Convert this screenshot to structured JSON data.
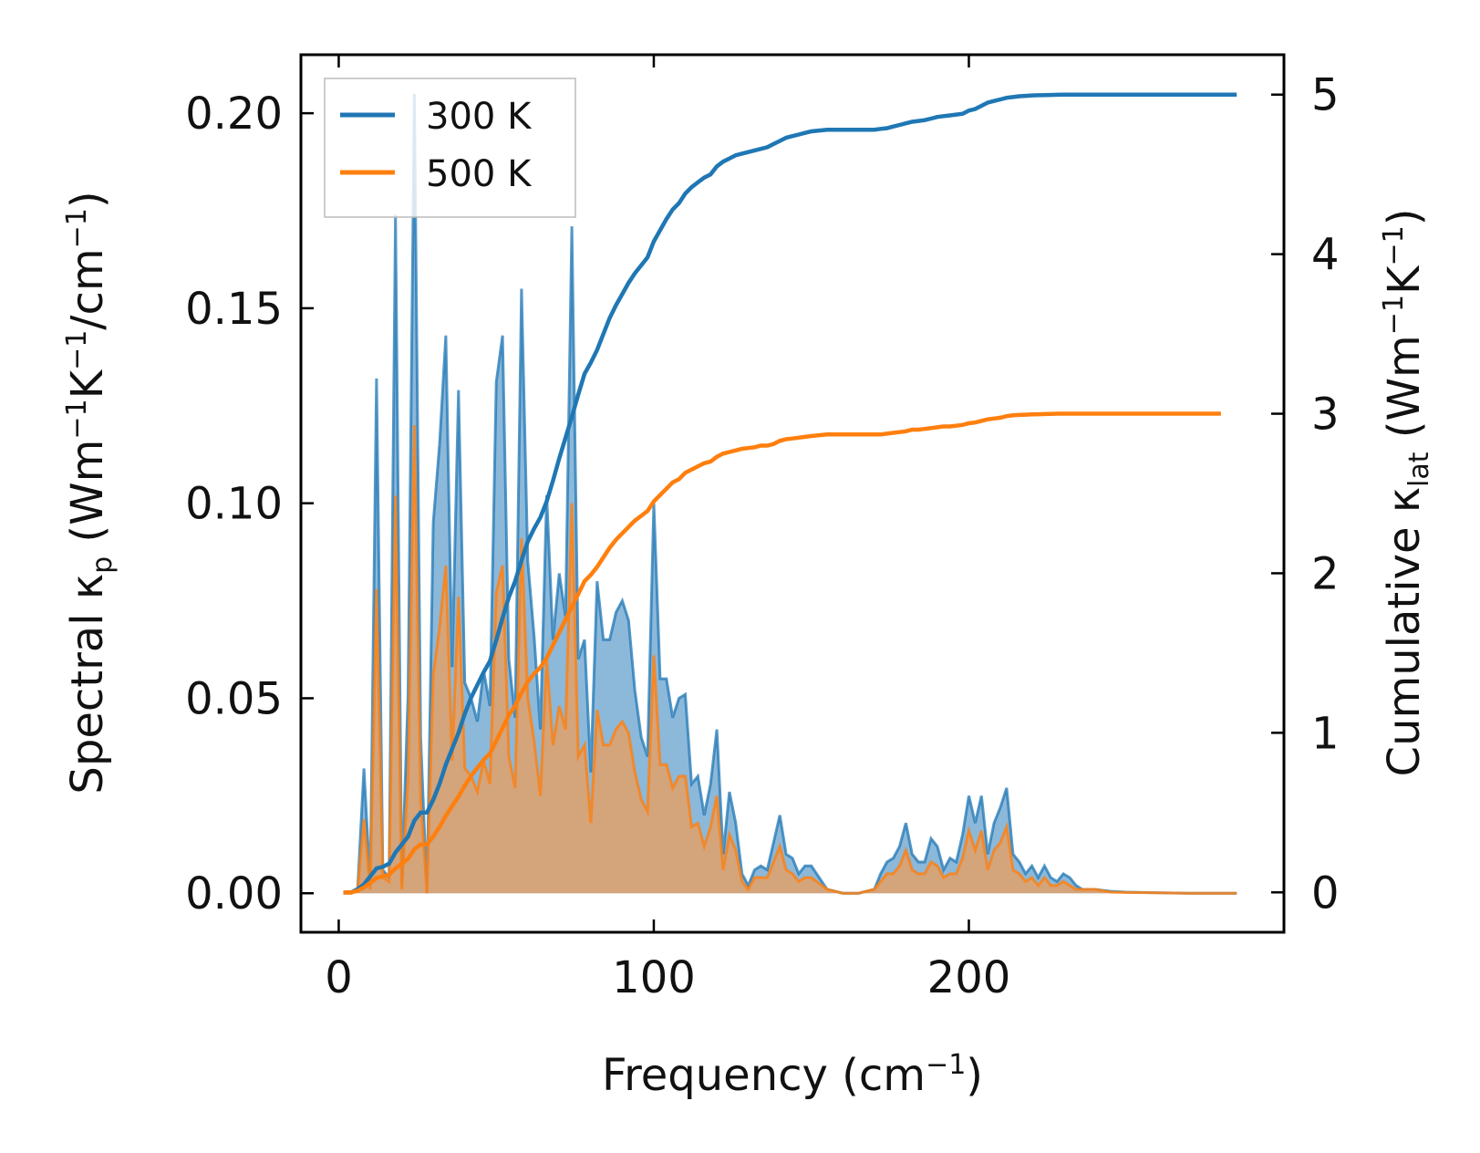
{
  "chart_data": {
    "type": "line",
    "title": "",
    "xlabel": {
      "main": "Frequency (cm",
      "sup": "−1",
      "close": ")"
    },
    "ylabel_left": {
      "p1": "Spectral κ",
      "sub": "p",
      "p2": " (Wm",
      "sup1": "−1",
      "p3": "K",
      "sup2": "−1",
      "p4": "/cm",
      "sup3": "−1",
      "p5": ")"
    },
    "ylabel_right": {
      "p1": "Cumulative κ",
      "sub": "lat",
      "p2": " (Wm",
      "sup1": "−1",
      "p3": "K",
      "sup2": "−1",
      "p4": ")"
    },
    "xlim": [
      -12,
      300
    ],
    "ylim_left": [
      -0.01,
      0.215
    ],
    "ylim_right": [
      -0.25,
      5.25
    ],
    "x_ticks": [
      0,
      100,
      200
    ],
    "x_tick_labels": [
      "0",
      "100",
      "200"
    ],
    "y_left_ticks": [
      0.0,
      0.05,
      0.1,
      0.15,
      0.2
    ],
    "y_left_tick_labels": [
      "0.00",
      "0.05",
      "0.10",
      "0.15",
      "0.20"
    ],
    "y_right_ticks": [
      0,
      1,
      2,
      3,
      4,
      5
    ],
    "y_right_tick_labels": [
      "0",
      "1",
      "2",
      "3",
      "4",
      "5"
    ],
    "legend": {
      "position": "upper-left",
      "entries": [
        "300 K",
        "500 K"
      ]
    },
    "colors": {
      "300K": "#1f77b4",
      "500K": "#ff7f0e",
      "fill300": "#7fb0d6",
      "fill500": "#e0a06a"
    },
    "x": [
      1.5,
      4,
      6,
      8,
      10,
      12,
      14,
      16,
      18,
      20,
      22,
      24,
      26,
      28,
      30,
      32,
      34,
      36,
      38,
      40,
      42,
      44,
      46,
      48,
      50,
      52,
      54,
      56,
      58,
      60,
      62,
      64,
      66,
      68,
      70,
      72,
      74,
      76,
      78,
      80,
      82,
      84,
      86,
      88,
      90,
      92,
      94,
      96,
      98,
      100,
      102,
      104,
      106,
      108,
      110,
      112,
      114,
      116,
      118,
      120,
      122,
      124,
      126,
      128,
      130,
      132,
      134,
      136,
      138,
      140,
      142,
      144,
      146,
      148,
      150,
      155,
      160,
      165,
      170,
      172,
      174,
      176,
      178,
      180,
      182,
      184,
      186,
      188,
      190,
      192,
      194,
      196,
      198,
      200,
      202,
      204,
      206,
      208,
      210,
      212,
      214,
      216,
      218,
      220,
      222,
      224,
      226,
      228,
      230,
      232,
      234,
      236,
      238,
      240,
      245,
      250,
      260,
      270,
      280,
      285
    ],
    "series": [
      {
        "name": "300 K",
        "spectral": [
          0,
          0,
          0.001,
          0.032,
          0.002,
          0.132,
          0.006,
          0.004,
          0.174,
          0.002,
          0.051,
          0.205,
          0.04,
          0.0,
          0.095,
          0.115,
          0.143,
          0.058,
          0.129,
          0.054,
          0.05,
          0.044,
          0.057,
          0.048,
          0.131,
          0.143,
          0.06,
          0.045,
          0.155,
          0.085,
          0.066,
          0.042,
          0.102,
          0.065,
          0.082,
          0.071,
          0.171,
          0.06,
          0.065,
          0.031,
          0.08,
          0.065,
          0.065,
          0.072,
          0.075,
          0.07,
          0.052,
          0.04,
          0.035,
          0.1,
          0.055,
          0.055,
          0.045,
          0.05,
          0.051,
          0.028,
          0.03,
          0.02,
          0.028,
          0.042,
          0.01,
          0.026,
          0.018,
          0.005,
          0.002,
          0.006,
          0.007,
          0.006,
          0.013,
          0.02,
          0.01,
          0.009,
          0.005,
          0.007,
          0.007,
          0.001,
          0.0,
          0.0,
          0.001,
          0.005,
          0.008,
          0.009,
          0.012,
          0.018,
          0.01,
          0.008,
          0.008,
          0.014,
          0.012,
          0.006,
          0.009,
          0.008,
          0.015,
          0.025,
          0.018,
          0.025,
          0.01,
          0.018,
          0.022,
          0.027,
          0.01,
          0.008,
          0.005,
          0.007,
          0.004,
          0.007,
          0.004,
          0.003,
          0.005,
          0.004,
          0.002,
          0.001,
          0.001,
          0.001,
          0.0005,
          0.0003,
          0.0001,
          0,
          0,
          0
        ],
        "cumulative": [
          0,
          0,
          0.02,
          0.05,
          0.1,
          0.15,
          0.16,
          0.18,
          0.25,
          0.3,
          0.35,
          0.45,
          0.5,
          0.5,
          0.58,
          0.68,
          0.8,
          0.9,
          1.0,
          1.12,
          1.22,
          1.3,
          1.38,
          1.45,
          1.58,
          1.72,
          1.85,
          1.95,
          2.08,
          2.2,
          2.28,
          2.35,
          2.45,
          2.58,
          2.72,
          2.85,
          2.98,
          3.12,
          3.25,
          3.32,
          3.4,
          3.5,
          3.6,
          3.68,
          3.75,
          3.82,
          3.88,
          3.93,
          3.98,
          4.08,
          4.15,
          4.22,
          4.28,
          4.32,
          4.38,
          4.42,
          4.45,
          4.48,
          4.5,
          4.55,
          4.58,
          4.6,
          4.62,
          4.63,
          4.64,
          4.65,
          4.66,
          4.67,
          4.69,
          4.71,
          4.73,
          4.74,
          4.75,
          4.76,
          4.77,
          4.78,
          4.78,
          4.78,
          4.78,
          4.785,
          4.79,
          4.8,
          4.81,
          4.82,
          4.83,
          4.835,
          4.84,
          4.85,
          4.86,
          4.865,
          4.87,
          4.875,
          4.88,
          4.9,
          4.91,
          4.93,
          4.95,
          4.96,
          4.97,
          4.98,
          4.985,
          4.99,
          4.992,
          4.995,
          4.996,
          4.997,
          4.998,
          4.999,
          5.0,
          5.0,
          5.0,
          5.0,
          5.0,
          5.0,
          5.0,
          5.0,
          5.0,
          5.0,
          5.0,
          5.0
        ]
      },
      {
        "name": "500 K",
        "spectral": [
          0,
          0,
          0.001,
          0.019,
          0.001,
          0.078,
          0.004,
          0.003,
          0.102,
          0.001,
          0.03,
          0.12,
          0.024,
          0.0,
          0.056,
          0.068,
          0.084,
          0.034,
          0.076,
          0.032,
          0.03,
          0.026,
          0.034,
          0.028,
          0.077,
          0.084,
          0.035,
          0.027,
          0.091,
          0.05,
          0.039,
          0.025,
          0.06,
          0.038,
          0.048,
          0.042,
          0.1,
          0.035,
          0.038,
          0.018,
          0.047,
          0.038,
          0.038,
          0.042,
          0.044,
          0.041,
          0.031,
          0.024,
          0.021,
          0.061,
          0.033,
          0.033,
          0.027,
          0.03,
          0.03,
          0.017,
          0.018,
          0.012,
          0.017,
          0.025,
          0.006,
          0.015,
          0.011,
          0.003,
          0.001,
          0.004,
          0.004,
          0.004,
          0.008,
          0.012,
          0.006,
          0.005,
          0.003,
          0.004,
          0.004,
          0.001,
          0.0,
          0.0,
          0.001,
          0.003,
          0.005,
          0.005,
          0.007,
          0.011,
          0.006,
          0.005,
          0.005,
          0.008,
          0.007,
          0.004,
          0.005,
          0.005,
          0.009,
          0.016,
          0.011,
          0.016,
          0.006,
          0.011,
          0.013,
          0.017,
          0.006,
          0.005,
          0.003,
          0.004,
          0.002,
          0.004,
          0.002,
          0.002,
          0.003,
          0.002,
          0.001,
          0.001,
          0.001,
          0.001,
          0.0003,
          0.0002,
          0.0001,
          0,
          0,
          0
        ],
        "cumulative": [
          0,
          0,
          0.01,
          0.03,
          0.06,
          0.09,
          0.1,
          0.11,
          0.15,
          0.18,
          0.21,
          0.27,
          0.3,
          0.3,
          0.35,
          0.41,
          0.48,
          0.54,
          0.6,
          0.67,
          0.73,
          0.78,
          0.83,
          0.87,
          0.95,
          1.03,
          1.11,
          1.17,
          1.25,
          1.32,
          1.37,
          1.41,
          1.47,
          1.55,
          1.63,
          1.71,
          1.79,
          1.87,
          1.95,
          1.99,
          2.04,
          2.1,
          2.16,
          2.21,
          2.25,
          2.29,
          2.33,
          2.36,
          2.39,
          2.45,
          2.49,
          2.53,
          2.57,
          2.59,
          2.63,
          2.65,
          2.67,
          2.69,
          2.7,
          2.73,
          2.75,
          2.76,
          2.77,
          2.78,
          2.785,
          2.79,
          2.8,
          2.8,
          2.81,
          2.83,
          2.84,
          2.845,
          2.85,
          2.855,
          2.86,
          2.87,
          2.87,
          2.87,
          2.87,
          2.87,
          2.875,
          2.88,
          2.885,
          2.89,
          2.9,
          2.9,
          2.905,
          2.91,
          2.915,
          2.92,
          2.92,
          2.925,
          2.93,
          2.94,
          2.945,
          2.955,
          2.965,
          2.97,
          2.975,
          2.985,
          2.99,
          2.992,
          2.994,
          2.996,
          2.997,
          2.998,
          2.999,
          3.0,
          3.0,
          3.0,
          3.0,
          3.0,
          3.0,
          3.0,
          3.0,
          3.0,
          3.0,
          3.0,
          3.0
        ]
      }
    ]
  }
}
